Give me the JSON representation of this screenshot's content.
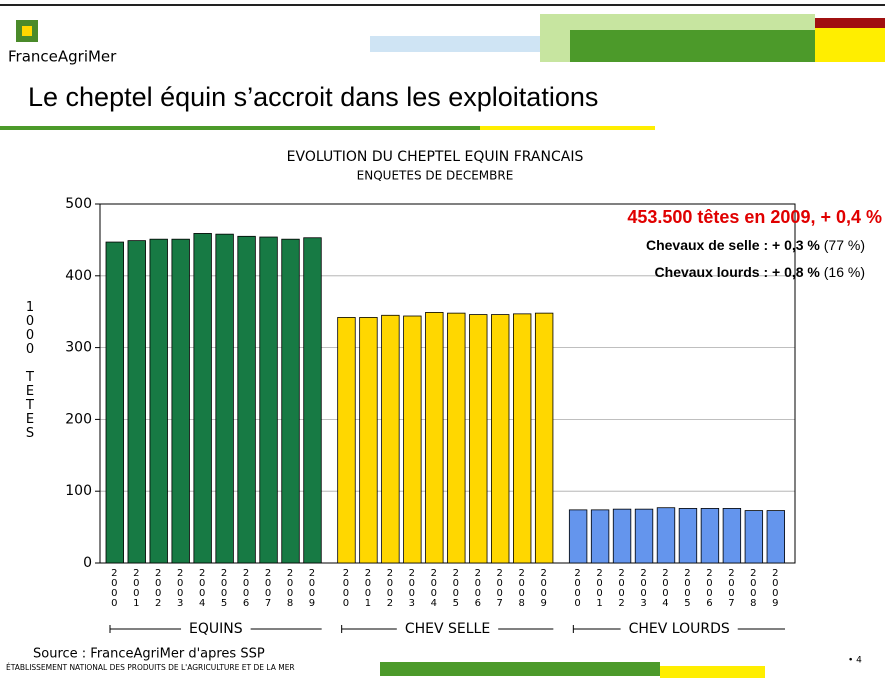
{
  "header": {
    "logo": "FranceAgriMer",
    "title": "Le cheptel équin s’accroit dans les exploitations"
  },
  "chart_data": {
    "type": "bar",
    "title": "EVOLUTION DU CHEPTEL EQUIN FRANCAIS",
    "subtitle": "ENQUETES DE DECEMBRE",
    "ylabel": "1000 TETES",
    "categories": [
      "2000",
      "2001",
      "2002",
      "2003",
      "2004",
      "2005",
      "2006",
      "2007",
      "2008",
      "2009"
    ],
    "series": [
      {
        "name": "EQUINS",
        "color": "#177a44",
        "values": [
          447,
          449,
          451,
          451,
          459,
          458,
          455,
          454,
          451,
          453
        ]
      },
      {
        "name": "CHEV SELLE",
        "color": "#ffd700",
        "values": [
          342,
          342,
          345,
          344,
          349,
          348,
          346,
          346,
          347,
          348
        ]
      },
      {
        "name": "CHEV LOURDS",
        "color": "#6495ed",
        "values": [
          74,
          74,
          75,
          75,
          77,
          76,
          76,
          76,
          73,
          73
        ]
      }
    ],
    "ylim": [
      0,
      500
    ],
    "yticks": [
      0,
      100,
      200,
      300,
      400,
      500
    ],
    "grid": true,
    "annotations": [
      [
        "453.500 têtes en 2009, + 0,4 %"
      ],
      [
        "Chevaux de selle : + 0,3 %",
        " (77 %)"
      ],
      [
        "Chevaux lourds : + 0,8 %",
        " (16 %)"
      ]
    ]
  },
  "footer": {
    "source": "Source : FranceAgriMer d'apres SSP",
    "org": "ÉTABLISSEMENT NATIONAL DES PRODUITS DE L'AGRICULTURE ET DE LA MER",
    "page": "• 4"
  }
}
